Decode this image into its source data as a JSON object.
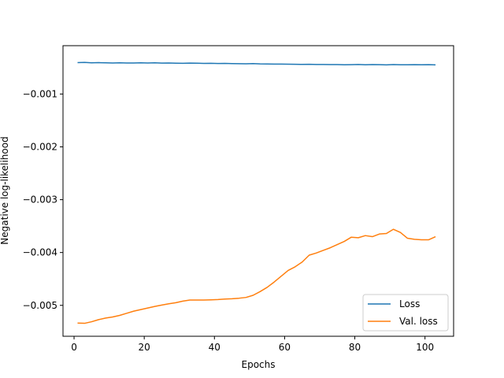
{
  "chart_data": {
    "type": "line",
    "title": "",
    "xlabel": "Epochs",
    "ylabel": "Negative log-likelihood",
    "xlim": [
      -3.15,
      108.15
    ],
    "ylim": [
      -0.005585,
      -8.5e-05
    ],
    "xticks": [
      0,
      20,
      40,
      60,
      80,
      100
    ],
    "xtick_labels": [
      "0",
      "20",
      "40",
      "60",
      "80",
      "100"
    ],
    "yticks": [
      -0.001,
      -0.002,
      -0.003,
      -0.004,
      -0.005
    ],
    "ytick_labels": [
      "−0.001",
      "−0.002",
      "−0.003",
      "−0.004",
      "−0.005"
    ],
    "grid": false,
    "legend_position": "lower-right",
    "series": [
      {
        "name": "Loss",
        "color": "#1f77b4",
        "x": [
          1,
          3,
          5,
          7,
          9,
          11,
          13,
          15,
          17,
          19,
          21,
          23,
          25,
          27,
          29,
          31,
          33,
          35,
          37,
          39,
          41,
          43,
          45,
          47,
          49,
          51,
          53,
          55,
          57,
          59,
          61,
          63,
          65,
          67,
          69,
          71,
          73,
          75,
          77,
          79,
          81,
          83,
          85,
          87,
          89,
          91,
          93,
          95,
          97,
          99,
          101,
          103
        ],
        "y": [
          -0.000405,
          -0.000402,
          -0.00041,
          -0.000406,
          -0.00041,
          -0.000412,
          -0.00041,
          -0.000413,
          -0.000412,
          -0.00041,
          -0.000413,
          -0.00041,
          -0.000415,
          -0.000413,
          -0.000416,
          -0.000418,
          -0.000415,
          -0.000416,
          -0.00042,
          -0.000418,
          -0.000422,
          -0.000421,
          -0.000424,
          -0.000426,
          -0.000428,
          -0.000425,
          -0.00043,
          -0.000432,
          -0.000434,
          -0.000433,
          -0.000436,
          -0.000438,
          -0.000439,
          -0.000438,
          -0.00044,
          -0.00044,
          -0.000443,
          -0.000442,
          -0.000446,
          -0.000444,
          -0.00044,
          -0.000446,
          -0.000443,
          -0.000444,
          -0.000448,
          -0.000442,
          -0.000447,
          -0.000446,
          -0.000444,
          -0.000447,
          -0.000444,
          -0.000449
        ]
      },
      {
        "name": "Val. loss",
        "color": "#ff7f0e",
        "x": [
          1,
          3,
          5,
          7,
          9,
          11,
          13,
          15,
          17,
          19,
          21,
          23,
          25,
          27,
          29,
          31,
          33,
          35,
          37,
          39,
          41,
          43,
          45,
          47,
          49,
          51,
          53,
          55,
          57,
          59,
          61,
          63,
          65,
          67,
          69,
          71,
          73,
          75,
          77,
          79,
          81,
          83,
          85,
          87,
          89,
          91,
          93,
          95,
          97,
          99,
          101,
          103
        ],
        "y": [
          -0.005335,
          -0.00534,
          -0.00531,
          -0.00527,
          -0.00524,
          -0.00522,
          -0.00519,
          -0.00515,
          -0.00511,
          -0.00508,
          -0.00505,
          -0.00502,
          -0.004995,
          -0.00497,
          -0.00495,
          -0.00492,
          -0.0049,
          -0.0049,
          -0.0049,
          -0.004895,
          -0.00489,
          -0.00488,
          -0.004875,
          -0.004865,
          -0.00485,
          -0.00481,
          -0.00474,
          -0.00466,
          -0.00456,
          -0.00445,
          -0.00434,
          -0.00427,
          -0.00418,
          -0.00405,
          -0.00401,
          -0.00396,
          -0.00391,
          -0.00385,
          -0.00379,
          -0.00371,
          -0.00372,
          -0.00368,
          -0.0037,
          -0.00365,
          -0.00364,
          -0.00356,
          -0.00362,
          -0.00373,
          -0.00375,
          -0.00376,
          -0.00376,
          -0.0037
        ]
      }
    ]
  }
}
